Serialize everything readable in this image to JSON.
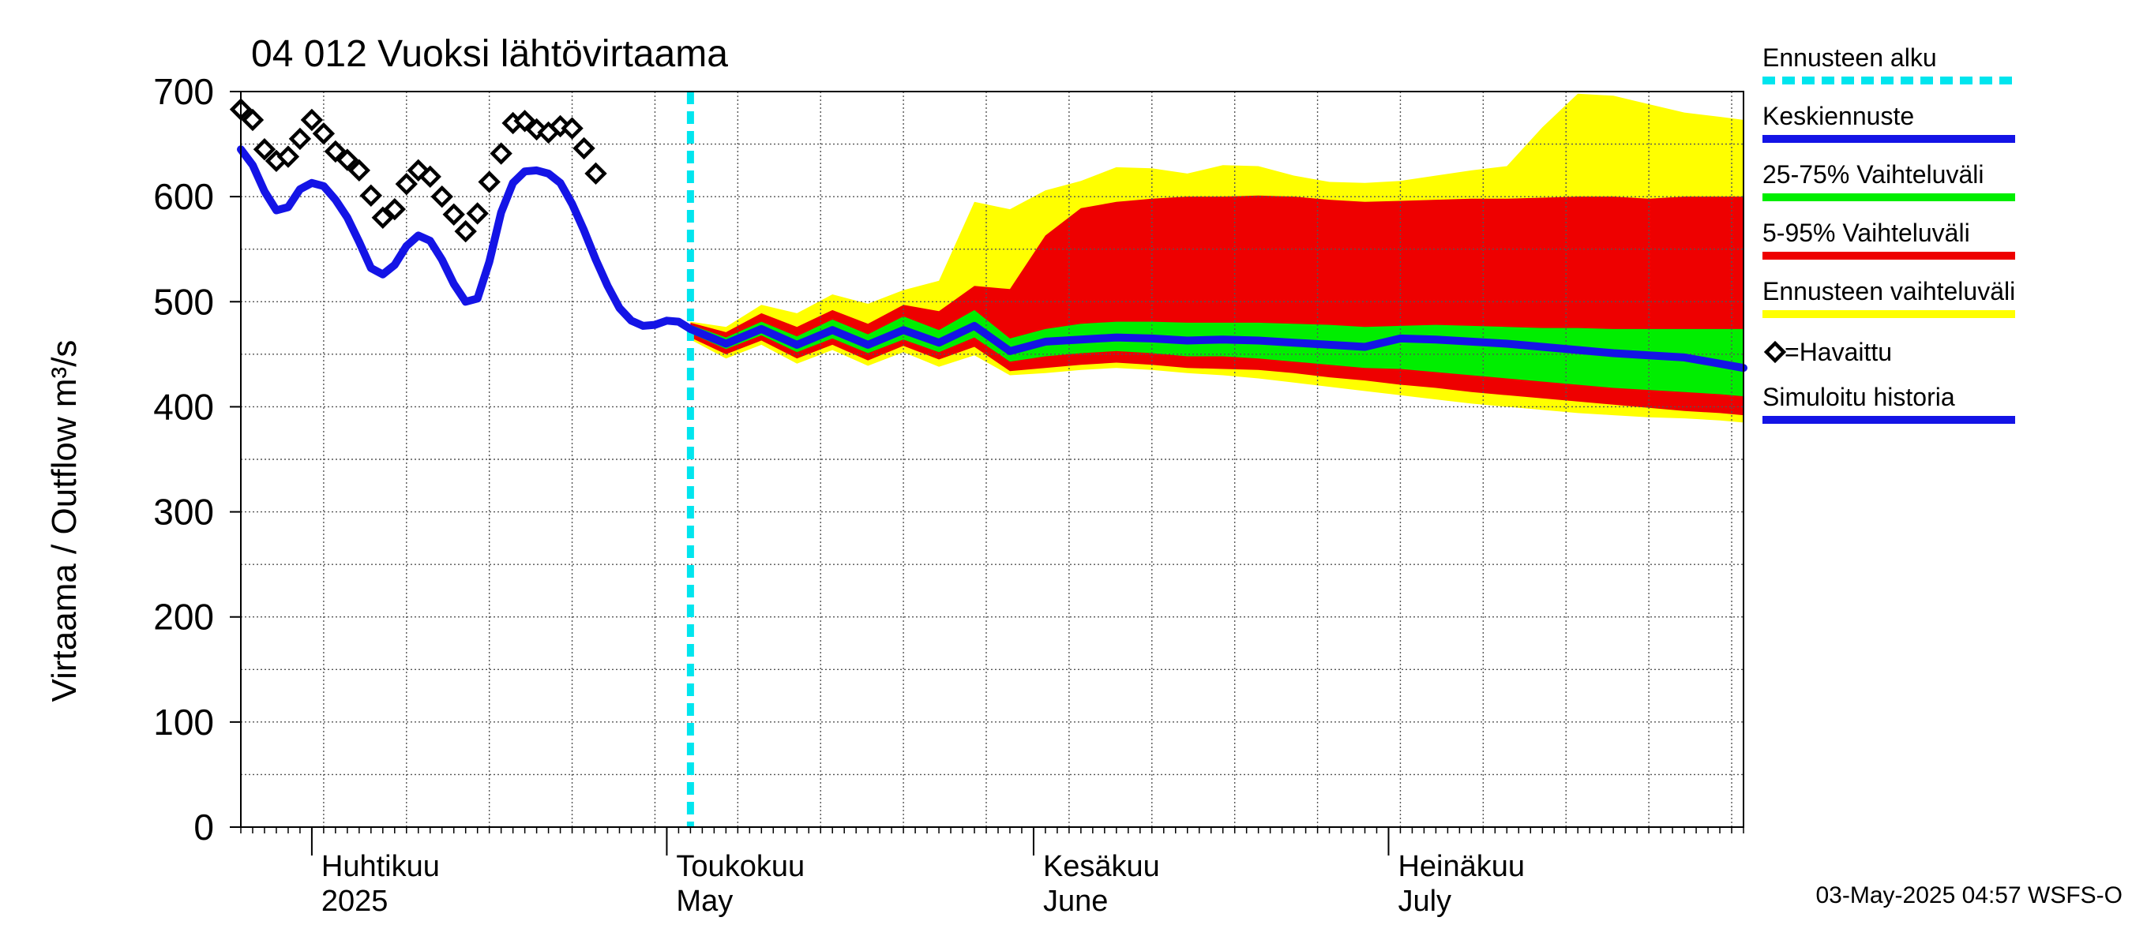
{
  "chart_data": {
    "type": "area",
    "title": "04 012 Vuoksi lähtövirtaama",
    "ylabel": "Virtaama / Outflow    m³/s",
    "ylim": [
      0,
      700
    ],
    "yticks": [
      "0",
      "100",
      "200",
      "300",
      "400",
      "500",
      "600",
      "700"
    ],
    "xlim": [
      "2025-03-26",
      "2025-07-31"
    ],
    "forecast_start": "2025-05-03",
    "month_labels": [
      {
        "date": "2025-04-01",
        "fi": "Huhtikuu",
        "en": "2025"
      },
      {
        "date": "2025-05-01",
        "fi": "Toukokuu",
        "en": "May"
      },
      {
        "date": "2025-06-01",
        "fi": "Kesäkuu",
        "en": "June"
      },
      {
        "date": "2025-07-01",
        "fi": "Heinäkuu",
        "en": "July"
      }
    ],
    "colors": {
      "forecast_start": "#00e5ee",
      "median": "#1414e6",
      "range_25_75": "#00ee00",
      "range_5_95": "#ee0000",
      "range_full": "#ffff00",
      "history": "#1414e6",
      "observed": "#000000"
    },
    "legend": {
      "forecast_start": "Ennusteen alku",
      "median": "Keskiennuste",
      "range_25_75": "25-75% Vaihteluväli",
      "range_5_95": "5-95% Vaihteluväli",
      "range_full": "Ennusteen vaihteluväli",
      "observed": "=Havaittu",
      "history": "Simuloitu historia"
    },
    "footer": "03-May-2025 04:57 WSFS-O",
    "observed": [
      [
        "2025-03-26",
        683
      ],
      [
        "2025-03-27",
        673
      ],
      [
        "2025-03-28",
        645
      ],
      [
        "2025-03-29",
        634
      ],
      [
        "2025-03-30",
        638
      ],
      [
        "2025-03-31",
        655
      ],
      [
        "2025-04-01",
        673
      ],
      [
        "2025-04-02",
        660
      ],
      [
        "2025-04-03",
        643
      ],
      [
        "2025-04-04",
        635
      ],
      [
        "2025-04-05",
        625
      ],
      [
        "2025-04-06",
        601
      ],
      [
        "2025-04-07",
        580
      ],
      [
        "2025-04-08",
        588
      ],
      [
        "2025-04-09",
        612
      ],
      [
        "2025-04-10",
        625
      ],
      [
        "2025-04-11",
        619
      ],
      [
        "2025-04-12",
        600
      ],
      [
        "2025-04-13",
        583
      ],
      [
        "2025-04-14",
        567
      ],
      [
        "2025-04-15",
        584
      ],
      [
        "2025-04-16",
        614
      ],
      [
        "2025-04-17",
        641
      ],
      [
        "2025-04-18",
        670
      ],
      [
        "2025-04-19",
        672
      ],
      [
        "2025-04-20",
        664
      ],
      [
        "2025-04-21",
        661
      ],
      [
        "2025-04-22",
        667
      ],
      [
        "2025-04-23",
        665
      ],
      [
        "2025-04-24",
        646
      ],
      [
        "2025-04-25",
        622
      ]
    ],
    "history": [
      [
        "2025-03-26",
        645
      ],
      [
        "2025-03-27",
        630
      ],
      [
        "2025-03-28",
        605
      ],
      [
        "2025-03-29",
        587
      ],
      [
        "2025-03-30",
        590
      ],
      [
        "2025-03-31",
        607
      ],
      [
        "2025-04-01",
        613
      ],
      [
        "2025-04-02",
        610
      ],
      [
        "2025-04-03",
        597
      ],
      [
        "2025-04-04",
        580
      ],
      [
        "2025-04-05",
        557
      ],
      [
        "2025-04-06",
        532
      ],
      [
        "2025-04-07",
        526
      ],
      [
        "2025-04-08",
        535
      ],
      [
        "2025-04-09",
        553
      ],
      [
        "2025-04-10",
        563
      ],
      [
        "2025-04-11",
        558
      ],
      [
        "2025-04-12",
        540
      ],
      [
        "2025-04-13",
        517
      ],
      [
        "2025-04-14",
        500
      ],
      [
        "2025-04-15",
        503
      ],
      [
        "2025-04-16",
        538
      ],
      [
        "2025-04-17",
        585
      ],
      [
        "2025-04-18",
        613
      ],
      [
        "2025-04-19",
        624
      ],
      [
        "2025-04-20",
        625
      ],
      [
        "2025-04-21",
        622
      ],
      [
        "2025-04-22",
        613
      ],
      [
        "2025-04-23",
        593
      ],
      [
        "2025-04-24",
        568
      ],
      [
        "2025-04-25",
        540
      ],
      [
        "2025-04-26",
        515
      ],
      [
        "2025-04-27",
        494
      ],
      [
        "2025-04-28",
        482
      ],
      [
        "2025-04-29",
        477
      ],
      [
        "2025-04-30",
        478
      ],
      [
        "2025-05-01",
        482
      ],
      [
        "2025-05-02",
        481
      ],
      [
        "2025-05-03",
        474
      ]
    ],
    "forecast": {
      "dates": [
        "2025-05-03",
        "2025-05-06",
        "2025-05-09",
        "2025-05-12",
        "2025-05-15",
        "2025-05-18",
        "2025-05-21",
        "2025-05-24",
        "2025-05-27",
        "2025-05-30",
        "2025-06-02",
        "2025-06-05",
        "2025-06-08",
        "2025-06-11",
        "2025-06-14",
        "2025-06-17",
        "2025-06-20",
        "2025-06-23",
        "2025-06-26",
        "2025-06-29",
        "2025-07-02",
        "2025-07-05",
        "2025-07-08",
        "2025-07-11",
        "2025-07-14",
        "2025-07-17",
        "2025-07-20",
        "2025-07-23",
        "2025-07-26",
        "2025-07-29",
        "2025-07-31"
      ],
      "median": [
        474,
        460,
        474,
        459,
        473,
        459,
        473,
        461,
        477,
        453,
        462,
        464,
        466,
        465,
        463,
        464,
        463,
        461,
        459,
        457,
        465,
        464,
        462,
        460,
        457,
        454,
        451,
        449,
        447,
        441,
        437
      ],
      "p25": [
        470,
        455,
        468,
        452,
        465,
        451,
        464,
        452,
        466,
        443,
        448,
        451,
        453,
        451,
        448,
        448,
        446,
        443,
        440,
        437,
        436,
        433,
        430,
        427,
        424,
        421,
        418,
        416,
        414,
        412,
        410
      ],
      "p75": [
        478,
        466,
        481,
        467,
        483,
        469,
        486,
        473,
        492,
        465,
        474,
        479,
        481,
        481,
        480,
        480,
        480,
        479,
        478,
        476,
        477,
        478,
        477,
        476,
        475,
        475,
        474,
        474,
        474,
        474,
        474
      ],
      "p5": [
        466,
        450,
        463,
        446,
        459,
        444,
        458,
        445,
        457,
        434,
        437,
        440,
        442,
        440,
        437,
        436,
        435,
        432,
        428,
        425,
        421,
        418,
        414,
        411,
        408,
        405,
        402,
        399,
        396,
        394,
        392
      ],
      "p95": [
        480,
        471,
        489,
        476,
        492,
        479,
        497,
        491,
        515,
        512,
        563,
        589,
        595,
        598,
        600,
        600,
        601,
        600,
        597,
        595,
        596,
        597,
        598,
        598,
        599,
        600,
        600,
        598,
        600,
        600,
        600
      ],
      "min": [
        464,
        446,
        459,
        441,
        454,
        439,
        452,
        438,
        449,
        430,
        432,
        435,
        437,
        435,
        432,
        430,
        427,
        423,
        419,
        415,
        411,
        407,
        403,
        400,
        397,
        394,
        392,
        390,
        389,
        387,
        385
      ],
      "max": [
        481,
        476,
        497,
        489,
        507,
        498,
        511,
        520,
        595,
        588,
        606,
        615,
        628,
        627,
        622,
        630,
        629,
        620,
        614,
        613,
        615,
        620,
        625,
        629,
        666,
        698,
        696,
        688,
        680,
        676,
        673
      ]
    }
  }
}
